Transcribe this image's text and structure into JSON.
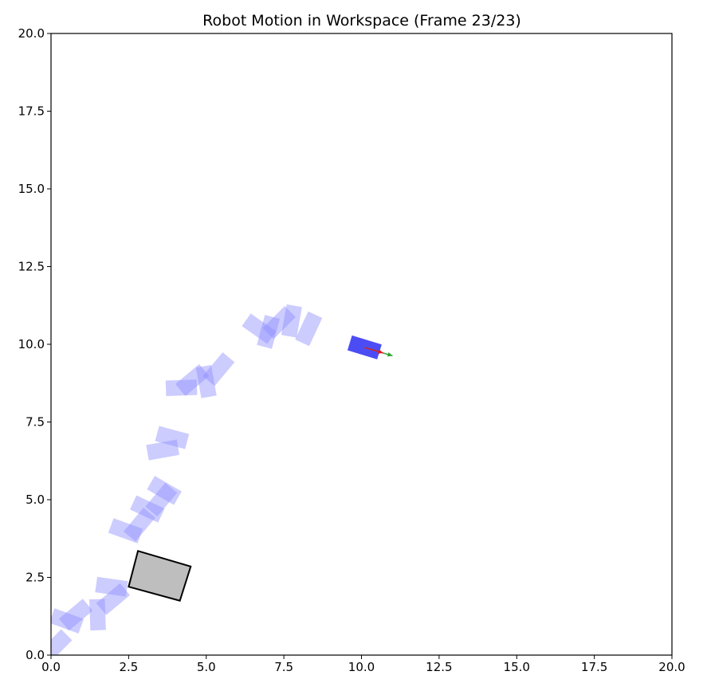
{
  "chart_data": {
    "type": "scatter",
    "title": "Robot Motion in Workspace (Frame 23/23)",
    "xlabel": "",
    "ylabel": "",
    "xlim": [
      0,
      20
    ],
    "ylim": [
      0,
      20
    ],
    "grid": false,
    "x_ticks": [
      "0.0",
      "2.5",
      "5.0",
      "7.5",
      "10.0",
      "12.5",
      "15.0",
      "17.5",
      "20.0"
    ],
    "y_ticks": [
      "0.0",
      "2.5",
      "5.0",
      "7.5",
      "10.0",
      "12.5",
      "15.0",
      "17.5",
      "20.0"
    ],
    "robot_size": {
      "length": 1.0,
      "width": 0.5
    },
    "trail_poses": [
      {
        "x": 0.15,
        "y": 0.3,
        "theta_deg": 45
      },
      {
        "x": 0.5,
        "y": 1.1,
        "theta_deg": -20
      },
      {
        "x": 0.8,
        "y": 1.3,
        "theta_deg": 40
      },
      {
        "x": 1.5,
        "y": 1.3,
        "theta_deg": 92
      },
      {
        "x": 2.0,
        "y": 1.8,
        "theta_deg": 40
      },
      {
        "x": 1.95,
        "y": 2.2,
        "theta_deg": -8
      },
      {
        "x": 2.4,
        "y": 4.0,
        "theta_deg": -20
      },
      {
        "x": 2.85,
        "y": 4.2,
        "theta_deg": 50
      },
      {
        "x": 3.1,
        "y": 4.7,
        "theta_deg": -25
      },
      {
        "x": 3.55,
        "y": 5.0,
        "theta_deg": 50
      },
      {
        "x": 3.65,
        "y": 5.3,
        "theta_deg": -30
      },
      {
        "x": 3.6,
        "y": 6.6,
        "theta_deg": 10
      },
      {
        "x": 3.9,
        "y": 7.0,
        "theta_deg": -15
      },
      {
        "x": 4.2,
        "y": 8.6,
        "theta_deg": 2
      },
      {
        "x": 4.55,
        "y": 8.85,
        "theta_deg": 40
      },
      {
        "x": 5.0,
        "y": 8.8,
        "theta_deg": 100
      },
      {
        "x": 5.4,
        "y": 9.2,
        "theta_deg": 50
      },
      {
        "x": 6.7,
        "y": 10.5,
        "theta_deg": -35
      },
      {
        "x": 7.0,
        "y": 10.4,
        "theta_deg": 75
      },
      {
        "x": 7.35,
        "y": 10.7,
        "theta_deg": 45
      },
      {
        "x": 7.75,
        "y": 10.75,
        "theta_deg": 80
      },
      {
        "x": 8.3,
        "y": 10.5,
        "theta_deg": 65
      }
    ],
    "current_pose": {
      "x": 10.1,
      "y": 9.9,
      "theta_deg": -17
    },
    "heading_arrow": {
      "dx": 0.6,
      "dy": -0.18,
      "color": "#e41a1c"
    },
    "velocity_arrow": {
      "dx": 0.9,
      "dy": -0.27,
      "color": "#2ca02c"
    },
    "obstacle": {
      "corners": [
        [
          2.8,
          3.35
        ],
        [
          4.5,
          2.85
        ],
        [
          4.15,
          1.75
        ],
        [
          2.5,
          2.2
        ]
      ],
      "fill": "#bebebe",
      "stroke": "#000000"
    },
    "colors": {
      "trail": "#8f8fff",
      "current": "#4c4cf5"
    }
  }
}
